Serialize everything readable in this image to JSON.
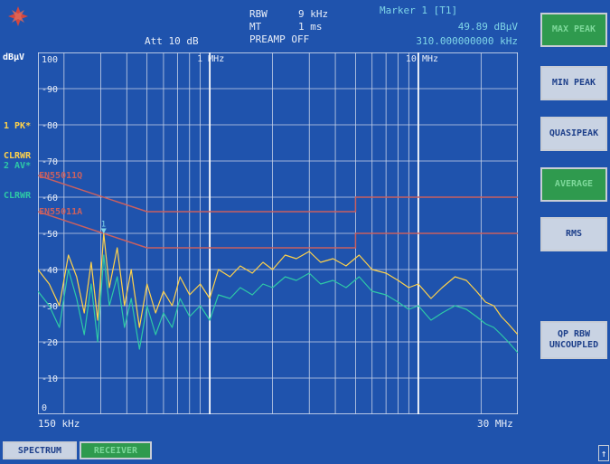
{
  "header": {
    "att": "Att 10 dB",
    "rbw_label": "RBW",
    "rbw_value": "9 kHz",
    "mt_label": "MT",
    "mt_value": "1 ms",
    "preamp": "PREAMP OFF",
    "marker_title": "Marker 1 [T1]",
    "marker_level": "49.89 dBµV",
    "marker_freq": "310.000000000 kHz"
  },
  "unit": "dBµV",
  "trace_labels": [
    {
      "line1": "1 PK*",
      "line2": "CLRWR",
      "color": "#ffd24a"
    },
    {
      "line1": "2 AV*",
      "line2": "CLRWR",
      "color": "#2ec9a6"
    }
  ],
  "limit_labels": [
    "EN55011Q",
    "EN55011A"
  ],
  "marker_number": "1",
  "softkeys": [
    {
      "label": "MAX PEAK",
      "active": true
    },
    {
      "label": "MIN PEAK",
      "active": false
    },
    {
      "label": "QUASIPEAK",
      "active": false
    },
    {
      "label": "AVERAGE",
      "active": true
    },
    {
      "label": "RMS",
      "active": false
    },
    {
      "label": "QP RBW\nUNCOUPLED",
      "active": false
    }
  ],
  "bottom_buttons": [
    {
      "label": "SPECTRUM",
      "active": false
    },
    {
      "label": "RECEIVER",
      "active": true
    }
  ],
  "scroll_arrow": "↑",
  "chart_data": {
    "type": "line",
    "xscale": "log",
    "xlim": [
      0.15,
      30
    ],
    "ylim": [
      0,
      100
    ],
    "x_start_label": "150 kHz",
    "x_end_label": "30 MHz",
    "x_mid_labels": [
      {
        "x": 1,
        "label": "1 MHz"
      },
      {
        "x": 10,
        "label": "10 MHz"
      }
    ],
    "y_ticks": [
      0,
      10,
      20,
      30,
      40,
      50,
      60,
      70,
      80,
      90,
      100
    ],
    "y_tick_labels": [
      "0",
      "10",
      "20",
      "30",
      "40",
      "50",
      "60",
      "70",
      "80",
      "90",
      "100"
    ],
    "limits": [
      {
        "name": "EN55011Q",
        "color": "#c96060",
        "points": [
          [
            0.15,
            66
          ],
          [
            0.5,
            56
          ],
          [
            5,
            56
          ],
          [
            5,
            60
          ],
          [
            30,
            60
          ]
        ]
      },
      {
        "name": "EN55011A",
        "color": "#c96060",
        "points": [
          [
            0.15,
            56
          ],
          [
            0.5,
            46
          ],
          [
            5,
            46
          ],
          [
            5,
            50
          ],
          [
            30,
            50
          ]
        ]
      }
    ],
    "series": [
      {
        "color": "#ffd24a",
        "x": [
          0.15,
          0.17,
          0.19,
          0.21,
          0.23,
          0.25,
          0.27,
          0.29,
          0.31,
          0.33,
          0.36,
          0.39,
          0.42,
          0.46,
          0.5,
          0.55,
          0.6,
          0.66,
          0.72,
          0.8,
          0.9,
          1.0,
          1.1,
          1.25,
          1.4,
          1.6,
          1.8,
          2.0,
          2.3,
          2.6,
          3.0,
          3.4,
          3.9,
          4.5,
          5.2,
          6,
          7,
          8,
          9,
          10,
          11.5,
          13,
          15,
          17,
          19,
          21,
          23,
          25,
          27,
          30
        ],
        "y": [
          40,
          36,
          30,
          44,
          38,
          28,
          42,
          26,
          50,
          35,
          46,
          30,
          40,
          24,
          36,
          28,
          34,
          30,
          38,
          33,
          36,
          32,
          40,
          38,
          41,
          39,
          42,
          40,
          44,
          43,
          45,
          42,
          43,
          41,
          44,
          40,
          39,
          37,
          35,
          36,
          32,
          35,
          38,
          37,
          34,
          31,
          30,
          27,
          25,
          22
        ]
      },
      {
        "color": "#2ec9a6",
        "x": [
          0.15,
          0.17,
          0.19,
          0.21,
          0.23,
          0.25,
          0.27,
          0.29,
          0.31,
          0.33,
          0.36,
          0.39,
          0.42,
          0.46,
          0.5,
          0.55,
          0.6,
          0.66,
          0.72,
          0.8,
          0.9,
          1.0,
          1.1,
          1.25,
          1.4,
          1.6,
          1.8,
          2.0,
          2.3,
          2.6,
          3.0,
          3.4,
          3.9,
          4.5,
          5.2,
          6,
          7,
          8,
          9,
          10,
          11.5,
          13,
          15,
          17,
          19,
          21,
          23,
          25,
          27,
          30
        ],
        "y": [
          34,
          30,
          24,
          40,
          32,
          22,
          36,
          20,
          44,
          30,
          38,
          24,
          32,
          18,
          30,
          22,
          28,
          24,
          32,
          27,
          30,
          26,
          33,
          32,
          35,
          33,
          36,
          35,
          38,
          37,
          39,
          36,
          37,
          35,
          38,
          34,
          33,
          31,
          29,
          30,
          26,
          28,
          30,
          29,
          27,
          25,
          24,
          22,
          20,
          17
        ]
      }
    ]
  }
}
